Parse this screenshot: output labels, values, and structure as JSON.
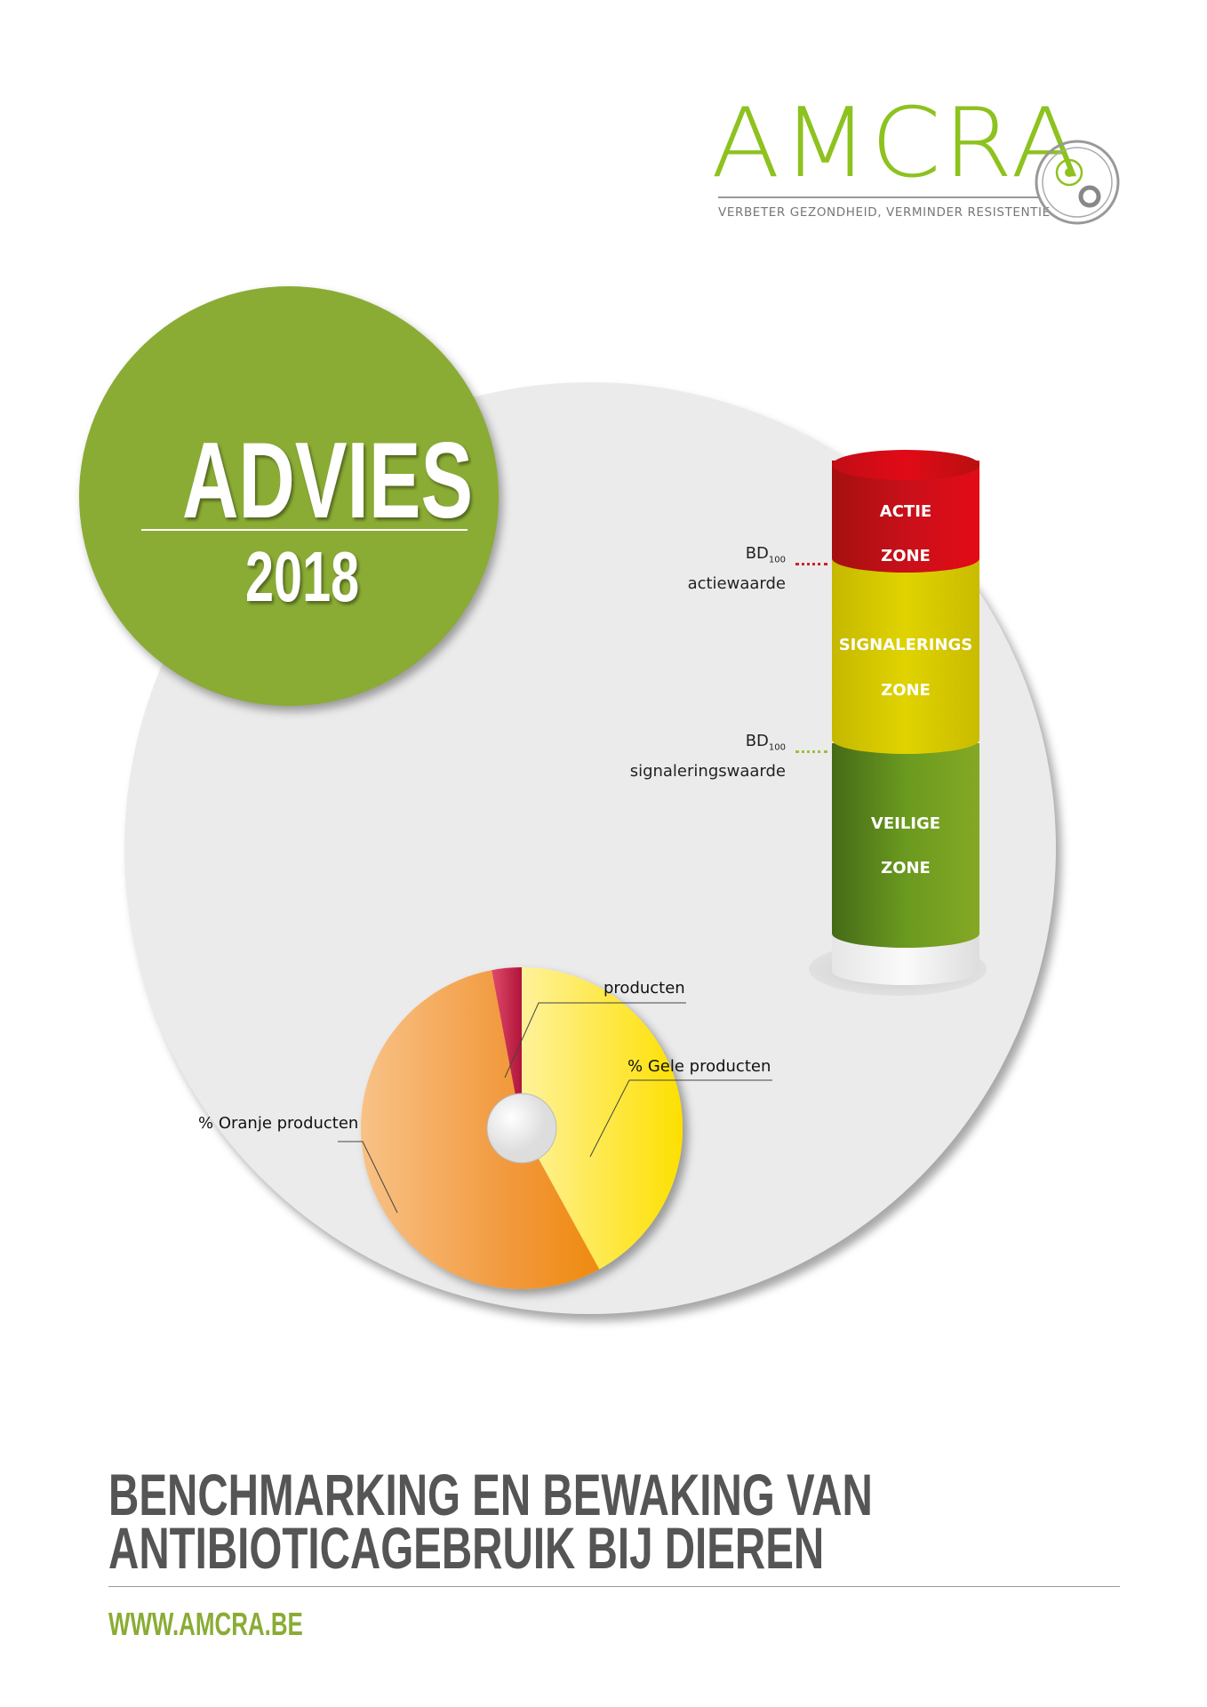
{
  "logo": {
    "name": "AMCRA",
    "tagline": "VERBETER GEZONDHEID, VERMINDER RESISTENTIE",
    "color": "#8dc21f"
  },
  "badge": {
    "title": "ADVIES",
    "year": "2018",
    "color": "#8aac35"
  },
  "cylinder": {
    "zones": [
      {
        "line1": "ACTIE",
        "line2": "ZONE",
        "color": "#c8101a"
      },
      {
        "line1": "SIGNALERINGS",
        "line2": "ZONE",
        "color": "#d6c800"
      },
      {
        "line1": "VEILIGE",
        "line2": "ZONE",
        "color": "#6a9a1f"
      }
    ],
    "thresholds": [
      {
        "main": "BD",
        "sub": "100",
        "name": "actiewaarde",
        "color": "#d0202a"
      },
      {
        "main": "BD",
        "sub": "100",
        "name": "signaleringswaarde",
        "color": "#9ac33a"
      }
    ]
  },
  "chart_data": {
    "type": "pie",
    "donut": true,
    "slices": [
      {
        "label": "producten",
        "value": 3,
        "color": "#c2193e"
      },
      {
        "label": "% Gele producten",
        "value": 42,
        "color": "#fde125"
      },
      {
        "label": "% Oranje producten",
        "value": 55,
        "color": "#f29a3f"
      }
    ]
  },
  "footer": {
    "title_line1": "BENCHMARKING EN BEWAKING VAN",
    "title_line2": "ANTIBIOTICAGEBRUIK BIJ DIEREN",
    "url": "WWW.AMCRA.BE"
  }
}
